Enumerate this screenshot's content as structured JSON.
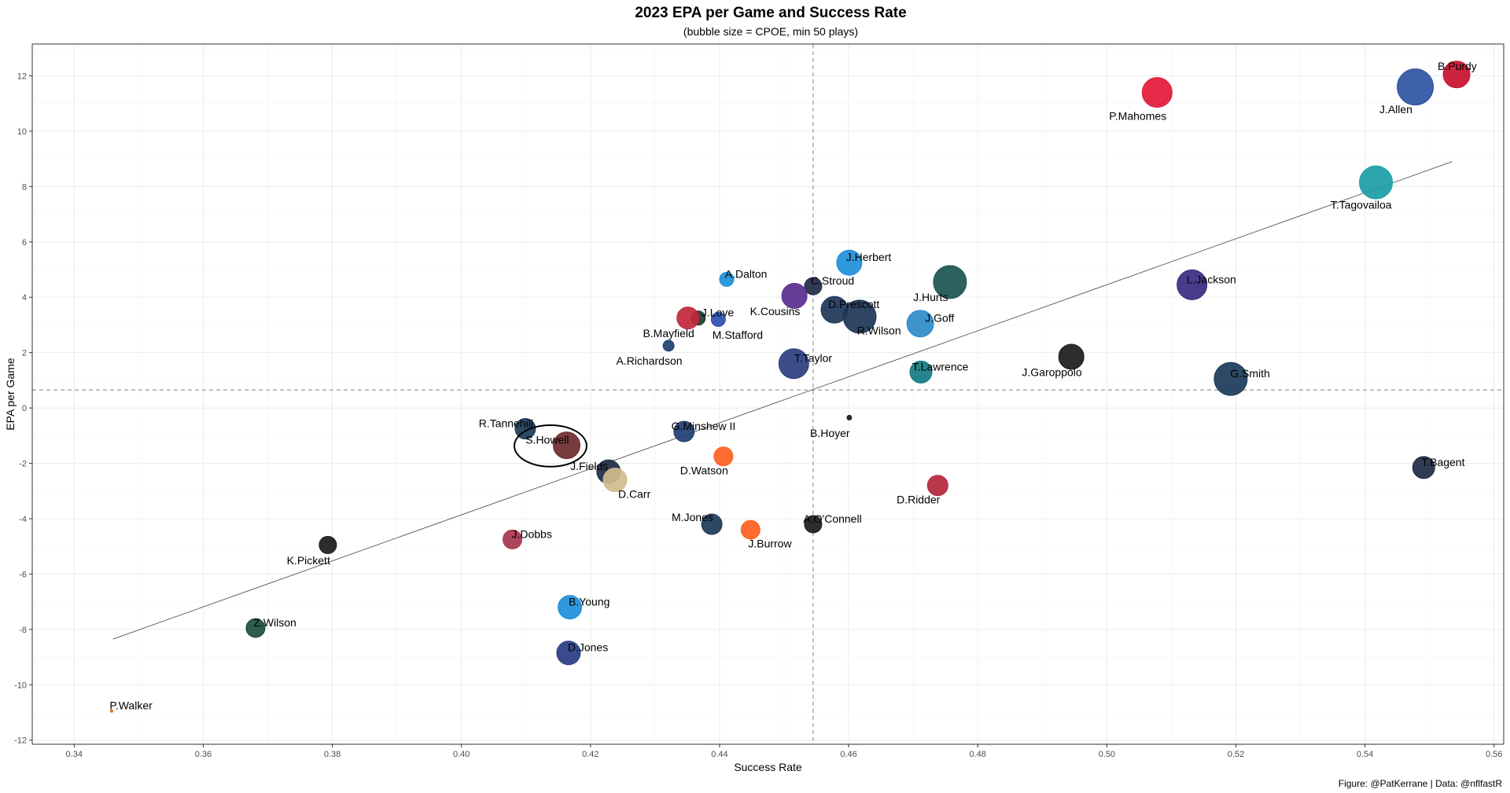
{
  "chart_data": {
    "type": "scatter",
    "title": "2023 EPA per Game and Success Rate",
    "subtitle": "(bubble size = CPOE, min 50 plays)",
    "caption": "Figure: @PatKerrane | Data: @nflfastR",
    "xlabel": "Success Rate",
    "ylabel": "EPA per Game",
    "xlim": [
      0.3335,
      0.5615
    ],
    "ylim": [
      -12.15,
      13.15
    ],
    "xticks": [
      "0.34",
      "0.36",
      "0.38",
      "0.40",
      "0.42",
      "0.44",
      "0.46",
      "0.48",
      "0.50",
      "0.52",
      "0.54",
      "0.56"
    ],
    "xtick_values": [
      0.34,
      0.36,
      0.38,
      0.4,
      0.42,
      0.44,
      0.46,
      0.48,
      0.5,
      0.52,
      0.54,
      0.56
    ],
    "yticks": [
      "-12",
      "-10",
      "-8",
      "-6",
      "-4",
      "-2",
      "0",
      "2",
      "4",
      "6",
      "8",
      "10",
      "12"
    ],
    "ytick_values": [
      -12,
      -10,
      -8,
      -6,
      -4,
      -2,
      0,
      2,
      4,
      6,
      8,
      10,
      12
    ],
    "grid": true,
    "mean_x": 0.4545,
    "mean_y": 0.65,
    "trend_line": {
      "x": [
        0.346,
        0.5535
      ],
      "y": [
        -8.35,
        8.9
      ]
    },
    "highlight": {
      "x": 0.4138,
      "y": -1.37,
      "rx": 0.0056,
      "ry": 0.75,
      "player": "S.Howell"
    },
    "points": [
      {
        "player": "B.Purdy",
        "x": 0.5542,
        "y": 12.05,
        "size": 17,
        "color": "#C8102E",
        "lx": 0.5543,
        "ly": 12.35
      },
      {
        "player": "J.Allen",
        "x": 0.5478,
        "y": 11.6,
        "size": 23,
        "color": "#2E52A2",
        "lx": 0.5448,
        "ly": 10.8
      },
      {
        "player": "P.Mahomes",
        "x": 0.5078,
        "y": 11.4,
        "size": 19,
        "color": "#E31837",
        "lx": 0.5048,
        "ly": 10.55
      },
      {
        "player": "T.Tagovailoa",
        "x": 0.5417,
        "y": 8.15,
        "size": 21,
        "color": "#1A9DA5",
        "lx": 0.5394,
        "ly": 7.35
      },
      {
        "player": "L.Jackson",
        "x": 0.5132,
        "y": 4.45,
        "size": 19,
        "color": "#3B2A83",
        "lx": 0.5162,
        "ly": 4.65
      },
      {
        "player": "J.Hurts",
        "x": 0.4757,
        "y": 4.55,
        "size": 21,
        "color": "#1B5450",
        "lx": 0.4727,
        "ly": 4.0
      },
      {
        "player": "J.Herbert",
        "x": 0.4601,
        "y": 5.25,
        "size": 16,
        "color": "#1E8FD9",
        "lx": 0.4631,
        "ly": 5.45
      },
      {
        "player": "C.Stroud",
        "x": 0.4545,
        "y": 4.4,
        "size": 11,
        "color": "#1F2A44",
        "lx": 0.4575,
        "ly": 4.6
      },
      {
        "player": "A.Dalton",
        "x": 0.4411,
        "y": 4.65,
        "size": 9,
        "color": "#1E8FD9",
        "lx": 0.4441,
        "ly": 4.85
      },
      {
        "player": "K.Cousins",
        "x": 0.4516,
        "y": 4.05,
        "size": 16,
        "color": "#5B2C8F",
        "lx": 0.4486,
        "ly": 3.5
      },
      {
        "player": "D.Prescott",
        "x": 0.4578,
        "y": 3.55,
        "size": 17,
        "color": "#1C3557",
        "lx": 0.4608,
        "ly": 3.75
      },
      {
        "player": "R.Wilson",
        "x": 0.4617,
        "y": 3.3,
        "size": 21,
        "color": "#1C3557",
        "lx": 0.4647,
        "ly": 2.8
      },
      {
        "player": "J.Goff",
        "x": 0.4711,
        "y": 3.05,
        "size": 17,
        "color": "#2E8BC9",
        "lx": 0.4741,
        "ly": 3.25
      },
      {
        "player": "J.Love",
        "x": 0.4367,
        "y": 3.25,
        "size": 9,
        "color": "#1F3A2E",
        "lx": 0.4397,
        "ly": 3.45
      },
      {
        "player": "B.Mayfield",
        "x": 0.4351,
        "y": 3.25,
        "size": 14,
        "color": "#C1273A",
        "lx": 0.4321,
        "ly": 2.7
      },
      {
        "player": "M.Stafford",
        "x": 0.4398,
        "y": 3.2,
        "size": 9,
        "color": "#2D4FAE",
        "lx": 0.4428,
        "ly": 2.65
      },
      {
        "player": "A.Richardson",
        "x": 0.4321,
        "y": 2.25,
        "size": 7,
        "color": "#1C3F72",
        "lx": 0.4291,
        "ly": 1.7
      },
      {
        "player": "T.Taylor",
        "x": 0.4515,
        "y": 1.6,
        "size": 19,
        "color": "#2C3E80",
        "lx": 0.4545,
        "ly": 1.8
      },
      {
        "player": "T.Lawrence",
        "x": 0.4712,
        "y": 1.3,
        "size": 14,
        "color": "#137B82",
        "lx": 0.4742,
        "ly": 1.5
      },
      {
        "player": "J.Garoppolo",
        "x": 0.4945,
        "y": 1.85,
        "size": 16,
        "color": "#1B1B1B",
        "lx": 0.4915,
        "ly": 1.3
      },
      {
        "player": "G.Smith",
        "x": 0.5192,
        "y": 1.05,
        "size": 21,
        "color": "#1C3A58",
        "lx": 0.5222,
        "ly": 1.25
      },
      {
        "player": "B.Hoyer",
        "x": 0.4601,
        "y": -0.35,
        "size": 3,
        "color": "#1B1B1B",
        "lx": 0.4571,
        "ly": -0.9
      },
      {
        "player": "R.Tannehill",
        "x": 0.4099,
        "y": -0.75,
        "size": 13,
        "color": "#1C3A58",
        "lx": 0.4069,
        "ly": -0.55
      },
      {
        "player": "S.Howell",
        "x": 0.4163,
        "y": -1.35,
        "size": 17,
        "color": "#6E2B2B",
        "lx": 0.4133,
        "ly": -1.15
      },
      {
        "player": "G.Minshew II",
        "x": 0.4345,
        "y": -0.85,
        "size": 13,
        "color": "#1F3E72",
        "lx": 0.4375,
        "ly": -0.65
      },
      {
        "player": "J.Fields",
        "x": 0.4228,
        "y": -2.3,
        "size": 15,
        "color": "#1F2A44",
        "lx": 0.4198,
        "ly": -2.1
      },
      {
        "player": "D.Carr",
        "x": 0.4238,
        "y": -2.6,
        "size": 15,
        "color": "#D3BC8D",
        "lx": 0.4268,
        "ly": -3.1
      },
      {
        "player": "D.Watson",
        "x": 0.4406,
        "y": -1.75,
        "size": 12,
        "color": "#FF5F1F",
        "lx": 0.4376,
        "ly": -2.25
      },
      {
        "player": "D.Ridder",
        "x": 0.4738,
        "y": -2.8,
        "size": 13,
        "color": "#B5263D",
        "lx": 0.4708,
        "ly": -3.3
      },
      {
        "player": "T.Bagent",
        "x": 0.5491,
        "y": -2.15,
        "size": 14,
        "color": "#1F2A44",
        "lx": 0.5521,
        "ly": -1.95
      },
      {
        "player": "A.O'Connell",
        "x": 0.4545,
        "y": -4.2,
        "size": 11,
        "color": "#1B1B1B",
        "lx": 0.4575,
        "ly": -4.0
      },
      {
        "player": "M.Jones",
        "x": 0.4388,
        "y": -4.2,
        "size": 13,
        "color": "#1C3A58",
        "lx": 0.4358,
        "ly": -3.95
      },
      {
        "player": "J.Burrow",
        "x": 0.4448,
        "y": -4.4,
        "size": 12,
        "color": "#FF5F1F",
        "lx": 0.4478,
        "ly": -4.9
      },
      {
        "player": "J.Dobbs",
        "x": 0.4079,
        "y": -4.75,
        "size": 12,
        "color": "#A7344D",
        "lx": 0.4109,
        "ly": -4.55
      },
      {
        "player": "K.Pickett",
        "x": 0.3793,
        "y": -4.95,
        "size": 11,
        "color": "#1B1B1B",
        "lx": 0.3763,
        "ly": -5.5
      },
      {
        "player": "B.Young",
        "x": 0.4168,
        "y": -7.2,
        "size": 15,
        "color": "#1E8FD9",
        "lx": 0.4198,
        "ly": -7.0
      },
      {
        "player": "D.Jones",
        "x": 0.4166,
        "y": -8.85,
        "size": 15,
        "color": "#283C84",
        "lx": 0.4196,
        "ly": -8.65
      },
      {
        "player": "Z.Wilson",
        "x": 0.3681,
        "y": -7.95,
        "size": 12,
        "color": "#1C4F3A",
        "lx": 0.3711,
        "ly": -7.75
      },
      {
        "player": "P.Walker",
        "x": 0.3458,
        "y": -10.95,
        "size": 1.5,
        "color": "#E06A1B",
        "lx": 0.3488,
        "ly": -10.75
      }
    ]
  }
}
